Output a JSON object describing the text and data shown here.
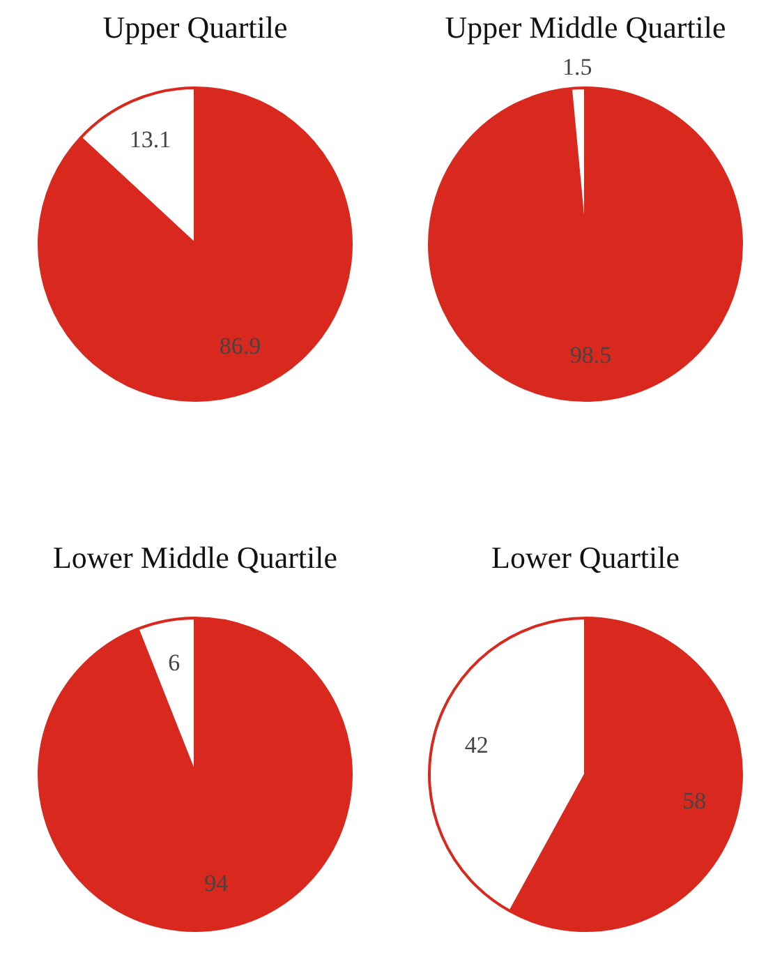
{
  "chart_data": [
    {
      "type": "pie",
      "title": "Upper Quartile",
      "categories": [
        null,
        null
      ],
      "values": [
        86.9,
        13.1
      ],
      "colors": [
        "#d9291f",
        "#ffffff"
      ],
      "data_labels": true
    },
    {
      "type": "pie",
      "title": "Upper Middle Quartile",
      "categories": [
        null,
        null
      ],
      "values": [
        98.5,
        1.5
      ],
      "colors": [
        "#d9291f",
        "#ffffff"
      ],
      "data_labels": true
    },
    {
      "type": "pie",
      "title": "Lower Middle Quartile",
      "categories": [
        null,
        null
      ],
      "values": [
        94,
        6
      ],
      "colors": [
        "#d9291f",
        "#ffffff"
      ],
      "data_labels": true
    },
    {
      "type": "pie",
      "title": "Lower Quartile",
      "categories": [
        null,
        null
      ],
      "values": [
        58,
        42
      ],
      "colors": [
        "#d9291f",
        "#ffffff"
      ],
      "data_labels": true
    }
  ]
}
